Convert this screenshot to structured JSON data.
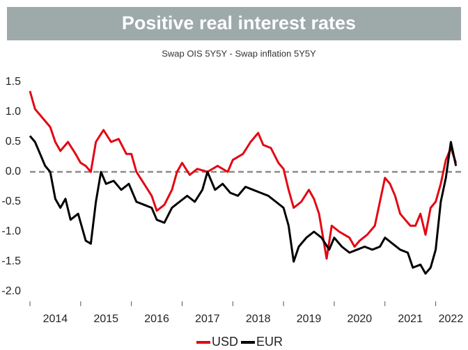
{
  "chart_data": {
    "type": "line",
    "title": "Positive real interest rates",
    "subtitle": "Swap OIS 5Y5Y - Swap inflation 5Y5Y",
    "xlim": [
      2014,
      2022.5
    ],
    "xtick_marks": [
      2014,
      2015,
      2016,
      2017,
      2018,
      2019,
      2020,
      2021,
      2022
    ],
    "xticks": [
      {
        "value": 2014.5,
        "label": "2014"
      },
      {
        "value": 2015.5,
        "label": "2015"
      },
      {
        "value": 2016.5,
        "label": "2016"
      },
      {
        "value": 2017.5,
        "label": "2017"
      },
      {
        "value": 2018.5,
        "label": "2018"
      },
      {
        "value": 2019.5,
        "label": "2019"
      },
      {
        "value": 2020.5,
        "label": "2020"
      },
      {
        "value": 2021.5,
        "label": "2021"
      },
      {
        "value": 2022.3,
        "label": "2022"
      }
    ],
    "ylim": [
      -2.1,
      1.6
    ],
    "yticks": [
      {
        "value": 1.5,
        "label": "1.5"
      },
      {
        "value": 1,
        "label": "1.0"
      },
      {
        "value": 0.5,
        "label": "0.5"
      },
      {
        "value": 0,
        "label": "0.0"
      },
      {
        "value": -0.5,
        "label": "-0.5"
      },
      {
        "value": -1,
        "label": "-1.0"
      },
      {
        "value": -1.5,
        "label": "-1.5"
      },
      {
        "value": -2,
        "label": "-2.0"
      }
    ],
    "zero_line": 0,
    "legend": "bottom",
    "series": [
      {
        "name": "USD",
        "color": "#e30613",
        "x": [
          2014.0,
          2014.1,
          2014.25,
          2014.4,
          2014.5,
          2014.6,
          2014.75,
          2014.9,
          2015.0,
          2015.1,
          2015.2,
          2015.3,
          2015.45,
          2015.6,
          2015.75,
          2015.9,
          2016.0,
          2016.1,
          2016.25,
          2016.4,
          2016.5,
          2016.65,
          2016.8,
          2016.9,
          2017.0,
          2017.15,
          2017.3,
          2017.5,
          2017.7,
          2017.9,
          2018.0,
          2018.2,
          2018.35,
          2018.5,
          2018.6,
          2018.75,
          2018.9,
          2019.0,
          2019.1,
          2019.2,
          2019.35,
          2019.5,
          2019.6,
          2019.7,
          2019.8,
          2019.85,
          2019.95,
          2020.1,
          2020.2,
          2020.3,
          2020.4,
          2020.5,
          2020.65,
          2020.8,
          2020.9,
          2021.0,
          2021.1,
          2021.2,
          2021.3,
          2021.4,
          2021.5,
          2021.6,
          2021.7,
          2021.8,
          2021.9,
          2022.0,
          2022.1,
          2022.2,
          2022.3,
          2022.4
        ],
        "values": [
          1.35,
          1.05,
          0.9,
          0.75,
          0.5,
          0.35,
          0.5,
          0.3,
          0.15,
          0.1,
          0.0,
          0.5,
          0.7,
          0.5,
          0.55,
          0.3,
          0.3,
          0.0,
          -0.2,
          -0.4,
          -0.65,
          -0.55,
          -0.3,
          0.0,
          0.15,
          -0.05,
          0.05,
          0.0,
          0.1,
          0.0,
          0.2,
          0.3,
          0.5,
          0.65,
          0.45,
          0.4,
          0.15,
          0.05,
          -0.3,
          -0.6,
          -0.5,
          -0.3,
          -0.45,
          -0.7,
          -1.2,
          -1.45,
          -0.9,
          -1.0,
          -1.05,
          -1.1,
          -1.25,
          -1.15,
          -1.05,
          -0.9,
          -0.5,
          -0.1,
          -0.2,
          -0.4,
          -0.7,
          -0.8,
          -0.9,
          -0.9,
          -0.7,
          -1.05,
          -0.6,
          -0.5,
          -0.2,
          0.2,
          0.4,
          0.15
        ]
      },
      {
        "name": "EUR",
        "color": "#000000",
        "x": [
          2014.0,
          2014.1,
          2014.2,
          2014.3,
          2014.4,
          2014.5,
          2014.6,
          2014.7,
          2014.8,
          2014.95,
          2015.1,
          2015.2,
          2015.3,
          2015.4,
          2015.5,
          2015.65,
          2015.8,
          2015.95,
          2016.1,
          2016.25,
          2016.4,
          2016.5,
          2016.65,
          2016.8,
          2016.95,
          2017.1,
          2017.25,
          2017.4,
          2017.5,
          2017.65,
          2017.8,
          2017.95,
          2018.1,
          2018.25,
          2018.4,
          2018.55,
          2018.7,
          2018.85,
          2019.0,
          2019.1,
          2019.2,
          2019.3,
          2019.45,
          2019.6,
          2019.75,
          2019.9,
          2020.0,
          2020.15,
          2020.3,
          2020.45,
          2020.6,
          2020.75,
          2020.9,
          2021.0,
          2021.15,
          2021.3,
          2021.45,
          2021.55,
          2021.7,
          2021.8,
          2021.9,
          2022.0,
          2022.1,
          2022.2,
          2022.3,
          2022.4
        ],
        "values": [
          0.6,
          0.5,
          0.3,
          0.1,
          0.0,
          -0.45,
          -0.6,
          -0.45,
          -0.8,
          -0.7,
          -1.15,
          -1.2,
          -0.5,
          0.0,
          -0.2,
          -0.15,
          -0.3,
          -0.2,
          -0.5,
          -0.55,
          -0.6,
          -0.8,
          -0.85,
          -0.6,
          -0.5,
          -0.4,
          -0.5,
          -0.3,
          0.0,
          -0.3,
          -0.2,
          -0.35,
          -0.4,
          -0.25,
          -0.3,
          -0.35,
          -0.4,
          -0.5,
          -0.6,
          -0.9,
          -1.5,
          -1.25,
          -1.1,
          -1.0,
          -1.1,
          -1.3,
          -1.1,
          -1.25,
          -1.35,
          -1.3,
          -1.25,
          -1.3,
          -1.25,
          -1.1,
          -1.2,
          -1.3,
          -1.35,
          -1.6,
          -1.55,
          -1.7,
          -1.6,
          -1.3,
          -0.5,
          -0.1,
          0.5,
          0.1
        ]
      }
    ]
  }
}
